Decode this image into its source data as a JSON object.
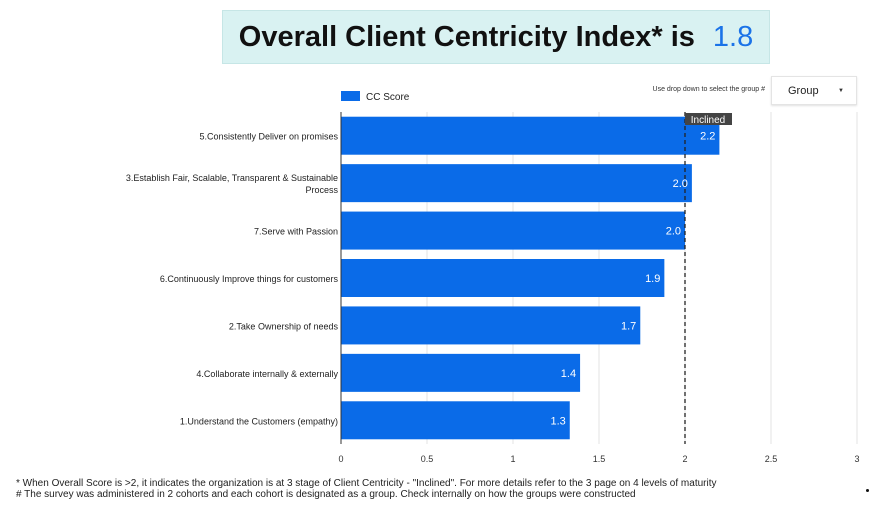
{
  "header": {
    "title": "Overall Client Centricity Index* is",
    "value": "1.8"
  },
  "controls": {
    "dropdown_hint": "Use drop down to select the group #",
    "group_select": "Group"
  },
  "chart_data": {
    "type": "bar",
    "orientation": "horizontal",
    "categories": [
      "5.Consistently Deliver on promises",
      "3.Establish Fair, Scalable, Transparent & Sustainable Process",
      "7.Serve with Passion",
      "6.Continuously Improve things for customers",
      "2.Take Ownership of needs",
      "4.Collaborate internally & externally",
      "1.Understand the Customers (empathy)"
    ],
    "category_lines": [
      [
        "5.Consistently Deliver on promises"
      ],
      [
        "3.Establish Fair, Scalable, Transparent & Sustainable",
        "Process"
      ],
      [
        "7.Serve with Passion"
      ],
      [
        "6.Continuously Improve things for customers"
      ],
      [
        "2.Take Ownership of needs"
      ],
      [
        "4.Collaborate internally & externally"
      ],
      [
        "1.Understand the Customers (empathy)"
      ]
    ],
    "values": [
      2.2,
      2.04,
      2.0,
      1.88,
      1.74,
      1.39,
      1.33
    ],
    "data_labels": [
      "2.2",
      "2.0",
      "2.0",
      "1.9",
      "1.7",
      "1.4",
      "1.3"
    ],
    "series": [
      {
        "name": "CC Score",
        "color": "#0a6be8"
      }
    ],
    "xlim": [
      0,
      3
    ],
    "xticks": [
      "0",
      "0.5",
      "1",
      "1.5",
      "2",
      "2.5",
      "3"
    ],
    "reference_line": {
      "value": 2.0,
      "label": "Inclined",
      "style": "dashed"
    },
    "legend_position": "top-left",
    "grid": "vertical"
  },
  "footnotes": [
    "* When Overall Score is >2, it indicates the organization is at 3 stage of Client Centricity - \"Inclined\". For more details refer to the 3 page on 4 levels of maturity",
    "# The survey was administered in 2 cohorts and each cohort is designated as a group. Check internally on how the groups were constructed"
  ]
}
